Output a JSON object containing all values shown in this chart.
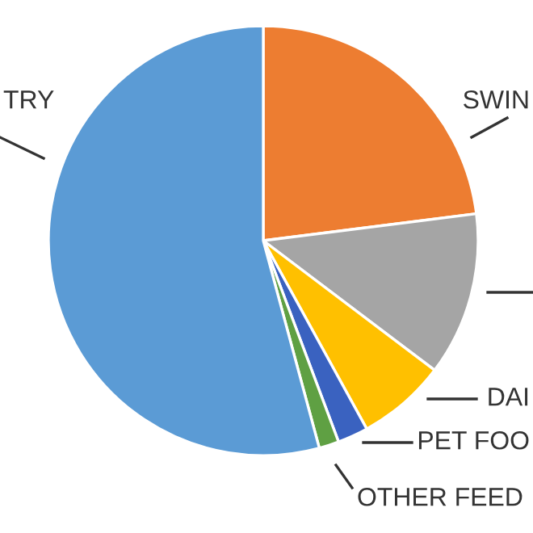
{
  "chart_data": {
    "type": "pie",
    "categories": [
      "SWIN",
      null,
      "DAI",
      "PET FOO",
      "OTHER FEED",
      "TRY"
    ],
    "values": [
      23,
      12.3,
      6.7,
      2.3,
      1.5,
      54.2
    ],
    "colors": [
      "#ed7d31",
      "#a5a5a5",
      "#ffc000",
      "#3a62c0",
      "#5fa043",
      "#5b9bd5"
    ]
  }
}
